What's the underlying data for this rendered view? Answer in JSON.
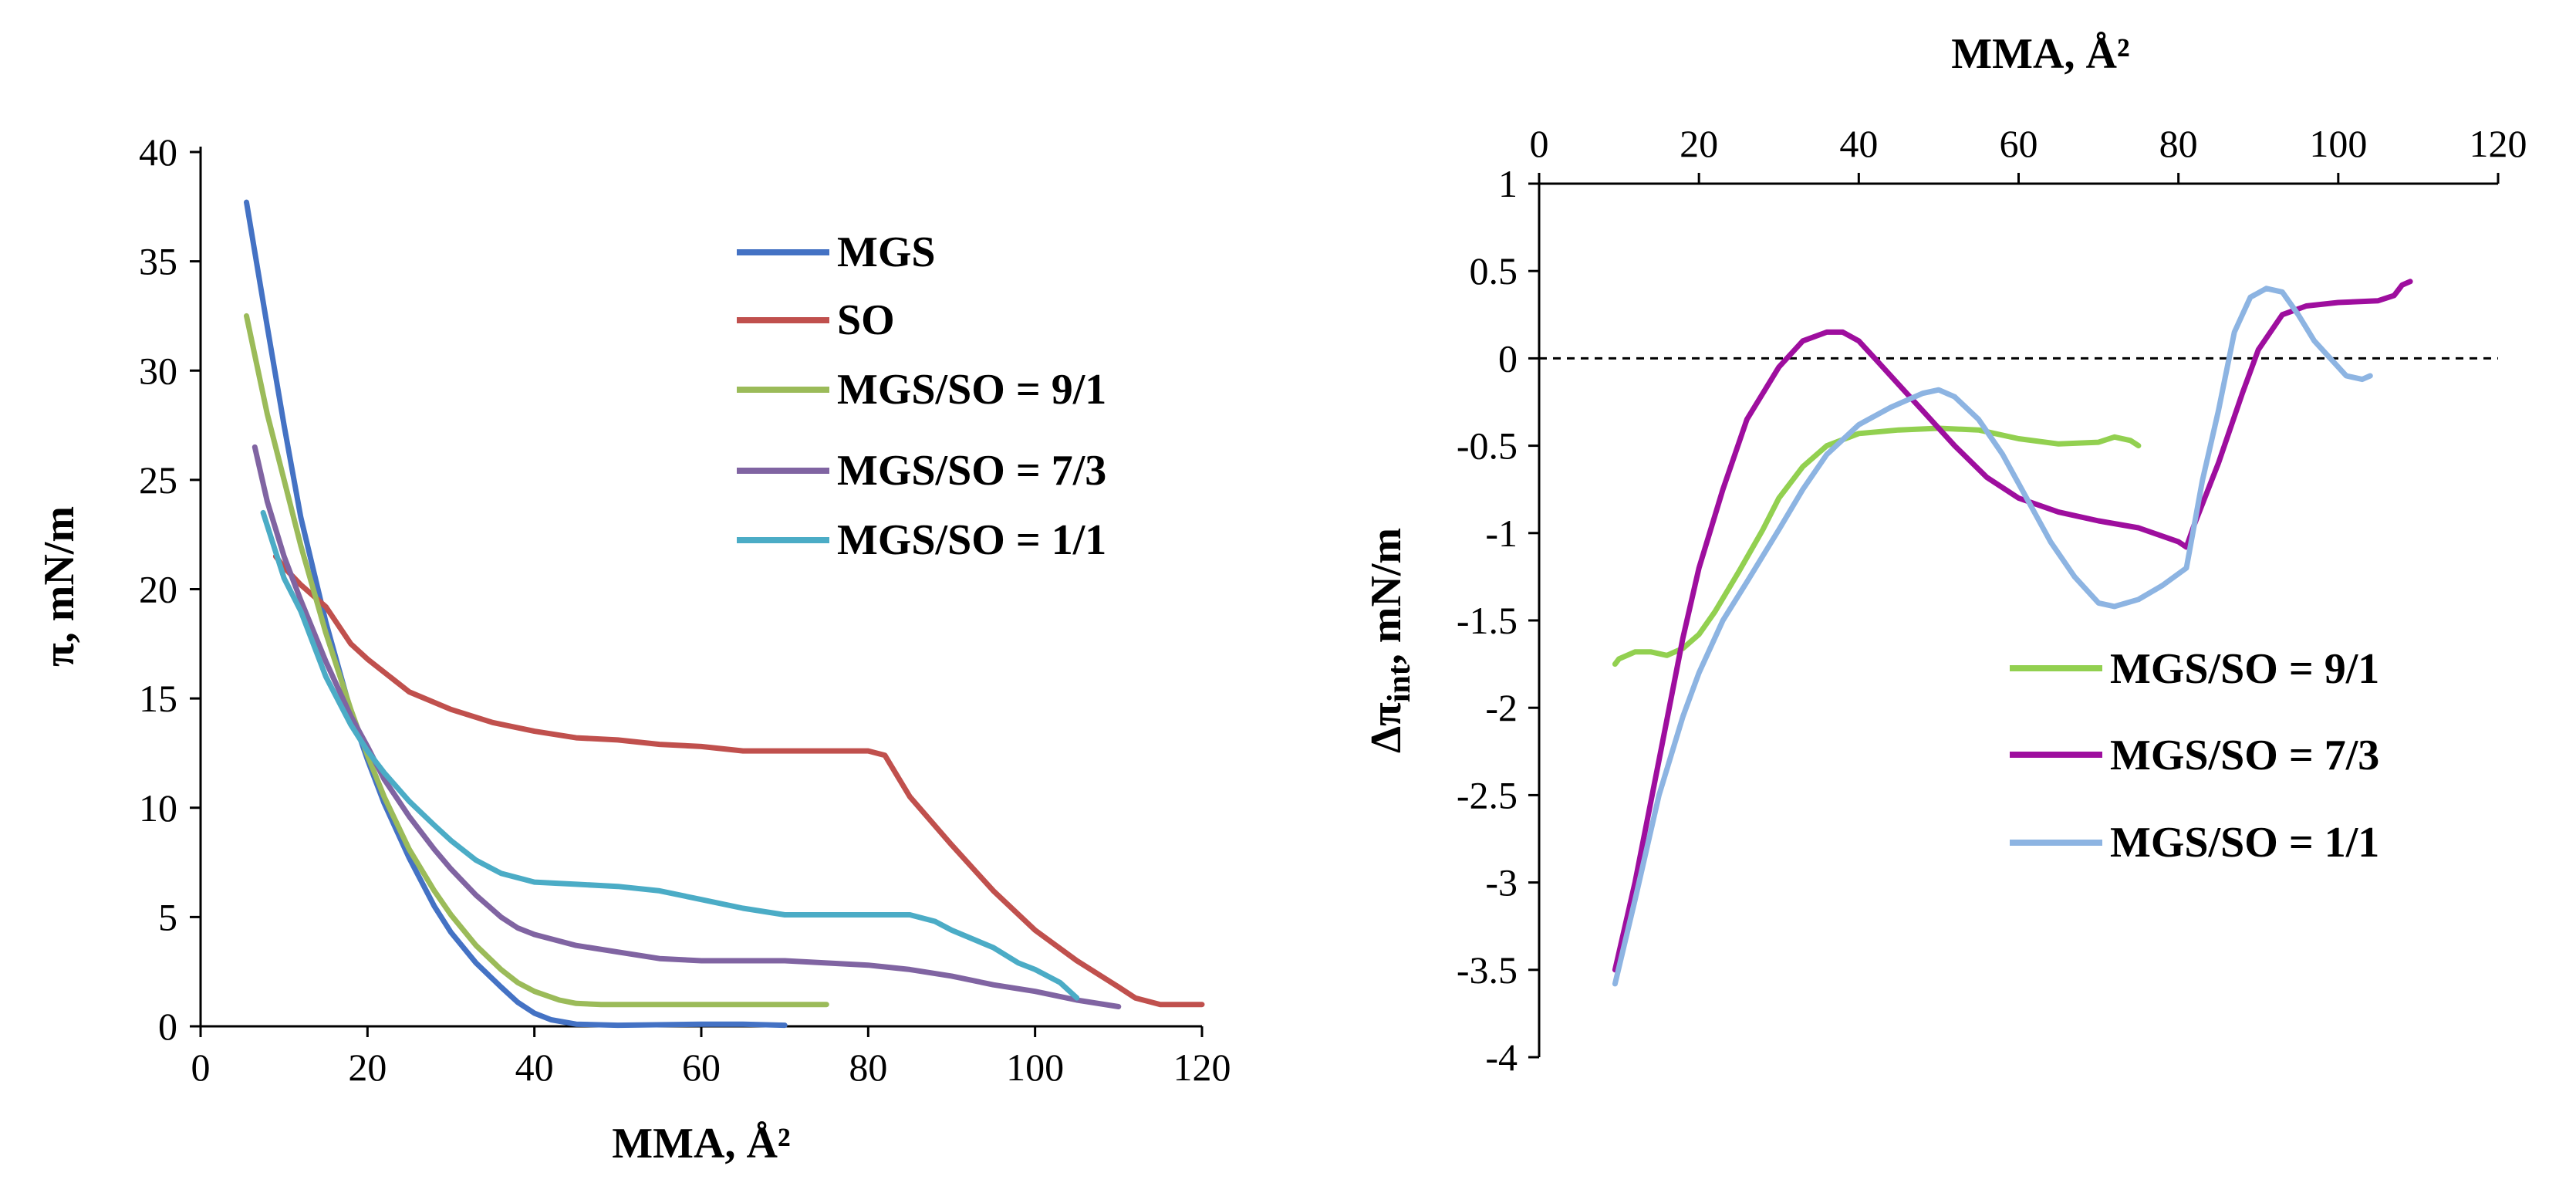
{
  "chart_data": [
    {
      "type": "line",
      "title": "",
      "xlabel": "MMA, Å²",
      "ylabel": "π, mN/m",
      "xlim": [
        0,
        120
      ],
      "ylim": [
        0,
        40
      ],
      "x_ticks": [
        "0",
        "20",
        "40",
        "60",
        "80",
        "100",
        "120"
      ],
      "y_ticks": [
        "0",
        "5",
        "10",
        "15",
        "20",
        "25",
        "30",
        "35",
        "40"
      ],
      "legend_position": "top-right",
      "series": [
        {
          "name": "MGS",
          "color": "#4472C4",
          "points": [
            [
              5.5,
              37.7
            ],
            [
              8,
              32
            ],
            [
              10,
              27.5
            ],
            [
              12,
              23.3
            ],
            [
              15,
              18.5
            ],
            [
              18,
              14.4
            ],
            [
              20,
              12.2
            ],
            [
              22,
              10.2
            ],
            [
              25,
              7.7
            ],
            [
              28,
              5.5
            ],
            [
              30,
              4.3
            ],
            [
              33,
              2.9
            ],
            [
              36,
              1.8
            ],
            [
              38,
              1.1
            ],
            [
              40,
              0.6
            ],
            [
              42,
              0.3
            ],
            [
              45,
              0.1
            ],
            [
              50,
              0.05
            ],
            [
              60,
              0.1
            ],
            [
              65,
              0.1
            ],
            [
              70,
              0.05
            ]
          ]
        },
        {
          "name": "SO",
          "color": "#C0504D",
          "points": [
            [
              9,
              21.5
            ],
            [
              10,
              21
            ],
            [
              12,
              20.2
            ],
            [
              15,
              19.2
            ],
            [
              18,
              17.5
            ],
            [
              20,
              16.8
            ],
            [
              25,
              15.3
            ],
            [
              30,
              14.5
            ],
            [
              35,
              13.9
            ],
            [
              40,
              13.5
            ],
            [
              45,
              13.2
            ],
            [
              50,
              13.1
            ],
            [
              55,
              12.9
            ],
            [
              60,
              12.8
            ],
            [
              65,
              12.6
            ],
            [
              70,
              12.6
            ],
            [
              75,
              12.6
            ],
            [
              80,
              12.6
            ],
            [
              82,
              12.4
            ],
            [
              85,
              10.5
            ],
            [
              90,
              8.3
            ],
            [
              95,
              6.2
            ],
            [
              100,
              4.4
            ],
            [
              105,
              3
            ],
            [
              110,
              1.8
            ],
            [
              112,
              1.3
            ],
            [
              115,
              1
            ],
            [
              120,
              1
            ]
          ]
        },
        {
          "name": "MGS/SO = 9/1",
          "color": "#9BBB59",
          "points": [
            [
              5.5,
              32.5
            ],
            [
              8,
              28
            ],
            [
              10,
              25
            ],
            [
              12,
              22
            ],
            [
              15,
              18
            ],
            [
              18,
              14.5
            ],
            [
              20,
              12.4
            ],
            [
              22,
              10.5
            ],
            [
              25,
              8.1
            ],
            [
              28,
              6.2
            ],
            [
              30,
              5.1
            ],
            [
              33,
              3.7
            ],
            [
              36,
              2.6
            ],
            [
              38,
              2
            ],
            [
              40,
              1.6
            ],
            [
              43,
              1.2
            ],
            [
              45,
              1.05
            ],
            [
              48,
              1
            ],
            [
              50,
              1
            ],
            [
              60,
              1
            ],
            [
              70,
              1
            ],
            [
              75,
              1
            ]
          ]
        },
        {
          "name": "MGS/SO = 7/3",
          "color": "#8064A2",
          "points": [
            [
              6.5,
              26.5
            ],
            [
              8,
              24
            ],
            [
              10,
              21.5
            ],
            [
              12,
              19.5
            ],
            [
              15,
              16.7
            ],
            [
              18,
              14.2
            ],
            [
              20,
              12.8
            ],
            [
              22,
              11.3
            ],
            [
              25,
              9.6
            ],
            [
              28,
              8.1
            ],
            [
              30,
              7.2
            ],
            [
              33,
              6
            ],
            [
              36,
              5
            ],
            [
              38,
              4.5
            ],
            [
              40,
              4.2
            ],
            [
              45,
              3.7
            ],
            [
              50,
              3.4
            ],
            [
              55,
              3.1
            ],
            [
              60,
              3
            ],
            [
              65,
              3
            ],
            [
              70,
              3
            ],
            [
              75,
              2.9
            ],
            [
              80,
              2.8
            ],
            [
              85,
              2.6
            ],
            [
              90,
              2.3
            ],
            [
              95,
              1.9
            ],
            [
              100,
              1.6
            ],
            [
              105,
              1.2
            ],
            [
              110,
              0.9
            ]
          ]
        },
        {
          "name": "MGS/SO = 1/1",
          "color": "#4BACC6",
          "points": [
            [
              7.5,
              23.5
            ],
            [
              10,
              20.5
            ],
            [
              12,
              19
            ],
            [
              15,
              16
            ],
            [
              18,
              13.8
            ],
            [
              20,
              12.6
            ],
            [
              22,
              11.6
            ],
            [
              25,
              10.3
            ],
            [
              28,
              9.2
            ],
            [
              30,
              8.5
            ],
            [
              33,
              7.6
            ],
            [
              36,
              7
            ],
            [
              40,
              6.6
            ],
            [
              45,
              6.5
            ],
            [
              50,
              6.4
            ],
            [
              55,
              6.2
            ],
            [
              60,
              5.8
            ],
            [
              65,
              5.4
            ],
            [
              70,
              5.1
            ],
            [
              75,
              5.1
            ],
            [
              80,
              5.1
            ],
            [
              85,
              5.1
            ],
            [
              88,
              4.8
            ],
            [
              90,
              4.4
            ],
            [
              95,
              3.6
            ],
            [
              98,
              2.9
            ],
            [
              100,
              2.6
            ],
            [
              103,
              2
            ],
            [
              105,
              1.3
            ]
          ]
        }
      ]
    },
    {
      "type": "line",
      "title": "",
      "xlabel": "MMA, Å²",
      "ylabel": "Δπ",
      "ylabel_subscript": "int",
      "ylabel_suffix": ", mN/m",
      "xlim": [
        0,
        120
      ],
      "ylim": [
        -4,
        1
      ],
      "x_axis_position": "top",
      "x_ticks": [
        "0",
        "20",
        "40",
        "60",
        "80",
        "100",
        "120"
      ],
      "y_ticks": [
        "1",
        "0.5",
        "0",
        "-0.5",
        "-1",
        "-1.5",
        "-2",
        "-2.5",
        "-3",
        "-3.5",
        "-4"
      ],
      "reference_line": {
        "y": 0,
        "style": "dashed"
      },
      "legend_position": "bottom-right",
      "series": [
        {
          "name": "MGS/SO = 9/1",
          "color": "#92D050",
          "points": [
            [
              9.5,
              -1.75
            ],
            [
              10,
              -1.72
            ],
            [
              12,
              -1.68
            ],
            [
              14,
              -1.68
            ],
            [
              16,
              -1.7
            ],
            [
              18,
              -1.66
            ],
            [
              20,
              -1.58
            ],
            [
              22,
              -1.45
            ],
            [
              25,
              -1.22
            ],
            [
              28,
              -0.98
            ],
            [
              30,
              -0.8
            ],
            [
              33,
              -0.62
            ],
            [
              36,
              -0.5
            ],
            [
              40,
              -0.43
            ],
            [
              45,
              -0.41
            ],
            [
              50,
              -0.4
            ],
            [
              55,
              -0.41
            ],
            [
              60,
              -0.46
            ],
            [
              65,
              -0.49
            ],
            [
              70,
              -0.48
            ],
            [
              72,
              -0.45
            ],
            [
              74,
              -0.47
            ],
            [
              75,
              -0.5
            ]
          ]
        },
        {
          "name": "MGS/SO = 7/3",
          "color": "#9E0E9E",
          "points": [
            [
              9.5,
              -3.5
            ],
            [
              12,
              -3
            ],
            [
              15,
              -2.3
            ],
            [
              18,
              -1.6
            ],
            [
              20,
              -1.2
            ],
            [
              23,
              -0.75
            ],
            [
              26,
              -0.35
            ],
            [
              30,
              -0.05
            ],
            [
              33,
              0.1
            ],
            [
              36,
              0.15
            ],
            [
              38,
              0.15
            ],
            [
              40,
              0.1
            ],
            [
              42,
              0
            ],
            [
              45,
              -0.15
            ],
            [
              48,
              -0.3
            ],
            [
              52,
              -0.5
            ],
            [
              56,
              -0.68
            ],
            [
              60,
              -0.8
            ],
            [
              65,
              -0.88
            ],
            [
              70,
              -0.93
            ],
            [
              75,
              -0.97
            ],
            [
              80,
              -1.05
            ],
            [
              81,
              -1.08
            ],
            [
              82,
              -0.95
            ],
            [
              85,
              -0.6
            ],
            [
              88,
              -0.2
            ],
            [
              90,
              0.05
            ],
            [
              93,
              0.25
            ],
            [
              96,
              0.3
            ],
            [
              100,
              0.32
            ],
            [
              105,
              0.33
            ],
            [
              107,
              0.36
            ],
            [
              108,
              0.42
            ],
            [
              109,
              0.44
            ]
          ]
        },
        {
          "name": "MGS/SO = 1/1",
          "color": "#8DB4E2",
          "points": [
            [
              9.5,
              -3.58
            ],
            [
              12,
              -3.1
            ],
            [
              15,
              -2.5
            ],
            [
              18,
              -2.05
            ],
            [
              20,
              -1.8
            ],
            [
              23,
              -1.5
            ],
            [
              26,
              -1.28
            ],
            [
              30,
              -0.98
            ],
            [
              33,
              -0.75
            ],
            [
              36,
              -0.55
            ],
            [
              40,
              -0.38
            ],
            [
              44,
              -0.28
            ],
            [
              48,
              -0.2
            ],
            [
              50,
              -0.18
            ],
            [
              52,
              -0.22
            ],
            [
              55,
              -0.35
            ],
            [
              58,
              -0.55
            ],
            [
              61,
              -0.8
            ],
            [
              64,
              -1.05
            ],
            [
              67,
              -1.25
            ],
            [
              70,
              -1.4
            ],
            [
              72,
              -1.42
            ],
            [
              75,
              -1.38
            ],
            [
              78,
              -1.3
            ],
            [
              81,
              -1.2
            ],
            [
              83,
              -0.7
            ],
            [
              85,
              -0.3
            ],
            [
              87,
              0.15
            ],
            [
              89,
              0.35
            ],
            [
              91,
              0.4
            ],
            [
              93,
              0.38
            ],
            [
              95,
              0.25
            ],
            [
              97,
              0.1
            ],
            [
              99,
              0
            ],
            [
              101,
              -0.1
            ],
            [
              103,
              -0.12
            ],
            [
              104,
              -0.1
            ]
          ]
        }
      ]
    }
  ]
}
